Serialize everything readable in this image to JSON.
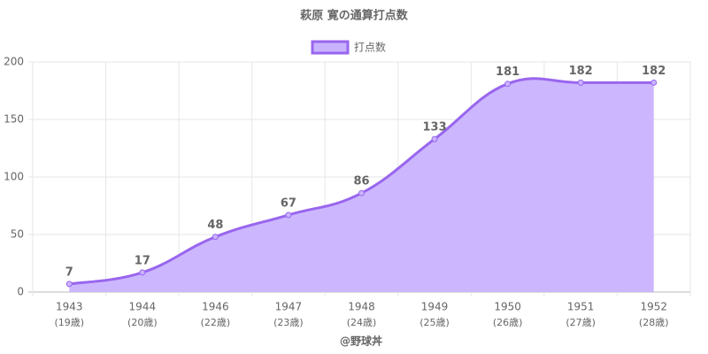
{
  "chart_data": {
    "type": "line",
    "title": "萩原 寛の通算打点数",
    "footer": "@野球丼",
    "categories": [
      [
        "1943",
        "(19歳)"
      ],
      [
        "1944",
        "(20歳)"
      ],
      [
        "1946",
        "(22歳)"
      ],
      [
        "1947",
        "(23歳)"
      ],
      [
        "1948",
        "(24歳)"
      ],
      [
        "1949",
        "(25歳)"
      ],
      [
        "1950",
        "(26歳)"
      ],
      [
        "1951",
        "(27歳)"
      ],
      [
        "1952",
        "(28歳)"
      ]
    ],
    "series": [
      {
        "name": "打点数",
        "color": "#9966ee",
        "fill": "#c9b3ff",
        "values": [
          7,
          17,
          48,
          67,
          86,
          133,
          181,
          182,
          182
        ]
      }
    ],
    "ylim": [
      0,
      200
    ],
    "yticks": [
      0,
      50,
      100,
      150,
      200
    ],
    "grid": true,
    "legend": "top",
    "data_labels": true
  }
}
